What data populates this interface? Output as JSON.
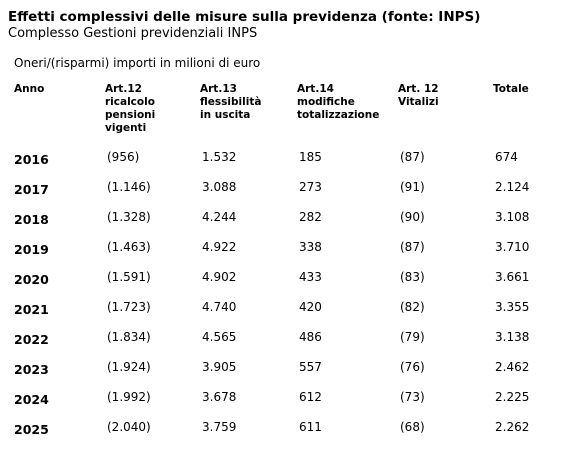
{
  "header": {
    "title": "Effetti complessivi delle misure sulla previdenza (fonte: INPS)",
    "subtitle": "Complesso Gestioni previdenziali INPS",
    "note": "Oneri/(risparmi) importi in milioni di euro"
  },
  "table": {
    "columns": [
      "Anno",
      "Art.12\nricalcolo\npensioni\nvigenti",
      "Art.13\nflessibilità\nin uscita",
      "Art.14\nmodifiche\ntotalizzazione",
      "Art. 12\nVitalizi",
      "Totale"
    ],
    "rows": [
      [
        "2016",
        "(956)",
        "1.532",
        "185",
        "(87)",
        "674"
      ],
      [
        "2017",
        "(1.146)",
        "3.088",
        "273",
        "(91)",
        "2.124"
      ],
      [
        "2018",
        "(1.328)",
        "4.244",
        "282",
        "(90)",
        "3.108"
      ],
      [
        "2019",
        "(1.463)",
        "4.922",
        "338",
        "(87)",
        "3.710"
      ],
      [
        "2020",
        "(1.591)",
        "4.902",
        "433",
        "(83)",
        "3.661"
      ],
      [
        "2021",
        "(1.723)",
        "4.740",
        "420",
        "(82)",
        "3.355"
      ],
      [
        "2022",
        "(1.834)",
        "4.565",
        "486",
        "(79)",
        "3.138"
      ],
      [
        "2023",
        "(1.924)",
        "3.905",
        "557",
        "(76)",
        "2.462"
      ],
      [
        "2024",
        "(1.992)",
        "3.678",
        "612",
        "(73)",
        "2.225"
      ],
      [
        "2025",
        "(2.040)",
        "3.759",
        "611",
        "(68)",
        "2.262"
      ]
    ]
  }
}
